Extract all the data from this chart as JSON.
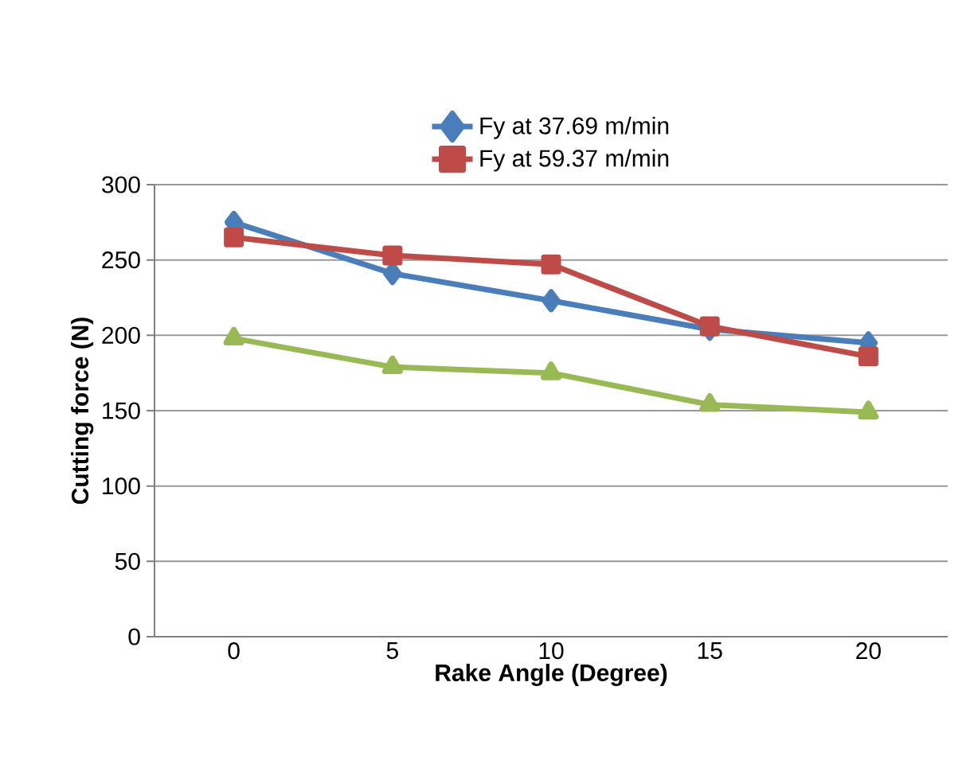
{
  "chart_data": {
    "type": "line",
    "xlabel": "Rake Angle (Degree)",
    "ylabel": "Cutting force (N)",
    "categories": [
      "0",
      "5",
      "10",
      "15",
      "20"
    ],
    "series": [
      {
        "name": "Fy at 37.69 m/min",
        "color": "#4a7ebb",
        "marker": "diamond",
        "values": [
          275,
          241,
          223,
          204,
          195
        ]
      },
      {
        "name": "Fy at 59.37 m/min",
        "color": "#be4b48",
        "marker": "square",
        "values": [
          265,
          253,
          247,
          206,
          186
        ]
      },
      {
        "color": "#98b954",
        "marker": "triangle",
        "values": [
          198,
          179,
          175,
          154,
          149
        ]
      }
    ],
    "ylim": [
      0,
      300
    ],
    "yticks": [
      0,
      50,
      100,
      150,
      200,
      250,
      300
    ],
    "grid": "y",
    "legend": "top"
  }
}
